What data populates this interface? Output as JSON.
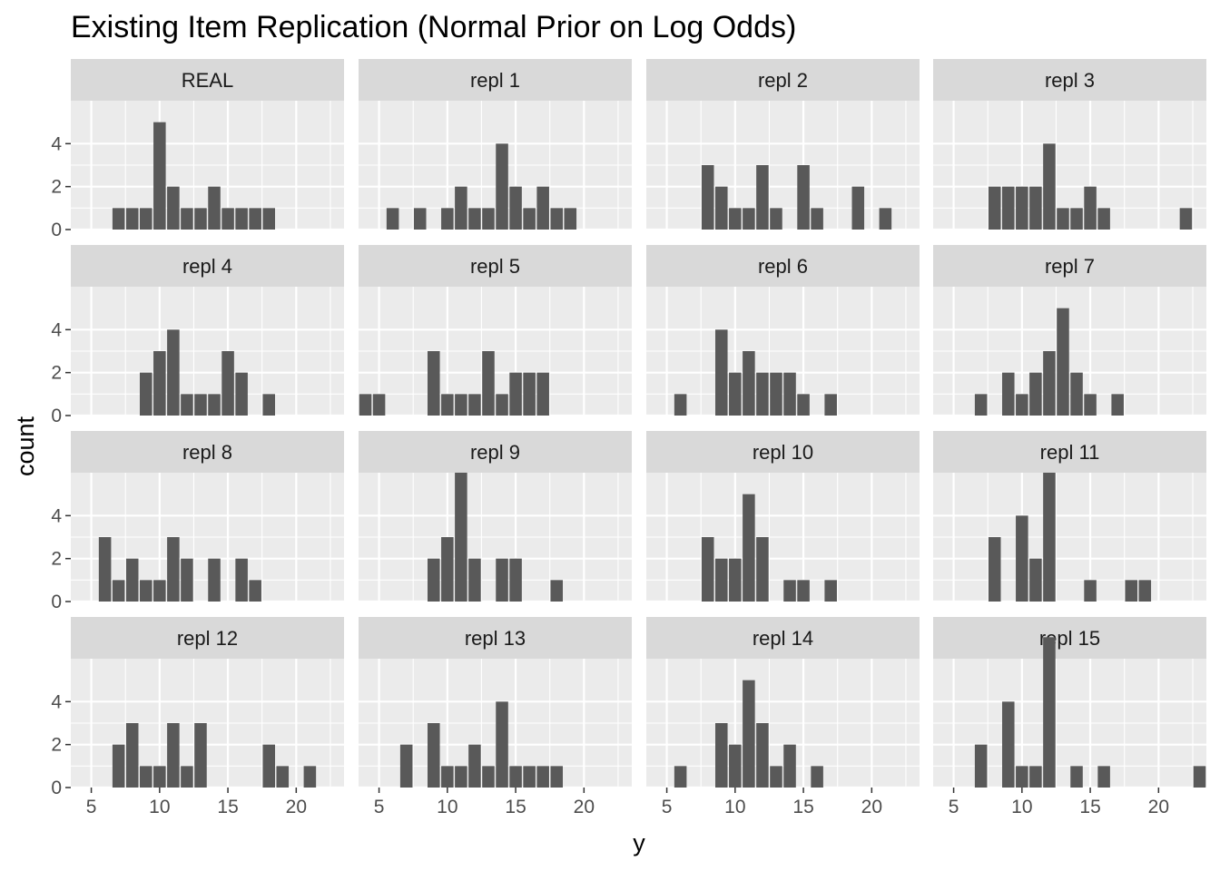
{
  "chart_data": {
    "type": "bar",
    "title": "Existing Item Replication (Normal Prior on Log Odds)",
    "xlabel": "y",
    "ylabel": "count",
    "xlim": [
      3.5,
      23.5
    ],
    "ylim": [
      0,
      6
    ],
    "x_ticks": [
      5,
      10,
      15,
      20
    ],
    "y_ticks": [
      0,
      2,
      4
    ],
    "grid": true,
    "bar_color": "#595959",
    "panel_bg": "#ebebeb",
    "strip_bg": "#d9d9d9",
    "grid_color": "#ffffff",
    "panels": [
      {
        "label": "REAL",
        "x": [
          7,
          8,
          9,
          10,
          11,
          12,
          13,
          14,
          15,
          16,
          17,
          18
        ],
        "values": [
          1,
          1,
          1,
          5,
          2,
          1,
          1,
          2,
          1,
          1,
          1,
          1
        ]
      },
      {
        "label": "repl  1",
        "x": [
          6,
          8,
          10,
          11,
          12,
          13,
          14,
          15,
          16,
          17,
          18,
          19
        ],
        "values": [
          1,
          1,
          1,
          2,
          1,
          1,
          4,
          2,
          1,
          2,
          1,
          1
        ]
      },
      {
        "label": "repl  2",
        "x": [
          8,
          9,
          10,
          11,
          12,
          13,
          15,
          16,
          19,
          21
        ],
        "values": [
          3,
          2,
          1,
          1,
          3,
          1,
          3,
          1,
          2,
          1
        ]
      },
      {
        "label": "repl  3",
        "x": [
          8,
          9,
          10,
          11,
          12,
          13,
          14,
          15,
          16,
          22
        ],
        "values": [
          2,
          2,
          2,
          2,
          4,
          1,
          1,
          2,
          1,
          1
        ]
      },
      {
        "label": "repl  4",
        "x": [
          9,
          10,
          11,
          12,
          13,
          14,
          15,
          16,
          18
        ],
        "values": [
          2,
          3,
          4,
          1,
          1,
          1,
          3,
          2,
          1
        ]
      },
      {
        "label": "repl  5",
        "x": [
          4,
          5,
          9,
          10,
          11,
          12,
          13,
          14,
          15,
          16,
          17
        ],
        "values": [
          1,
          1,
          3,
          1,
          1,
          1,
          3,
          1,
          2,
          2,
          2
        ]
      },
      {
        "label": "repl  6",
        "x": [
          6,
          9,
          10,
          11,
          12,
          13,
          14,
          15,
          17
        ],
        "values": [
          1,
          4,
          2,
          3,
          2,
          2,
          2,
          1,
          1
        ]
      },
      {
        "label": "repl  7",
        "x": [
          7,
          9,
          10,
          11,
          12,
          13,
          14,
          15,
          17
        ],
        "values": [
          1,
          2,
          1,
          2,
          3,
          5,
          2,
          1,
          1
        ]
      },
      {
        "label": "repl  8",
        "x": [
          6,
          7,
          8,
          9,
          10,
          11,
          12,
          14,
          16,
          17
        ],
        "values": [
          3,
          1,
          2,
          1,
          1,
          3,
          2,
          2,
          2,
          1
        ]
      },
      {
        "label": "repl  9",
        "x": [
          9,
          10,
          11,
          12,
          14,
          15,
          18
        ],
        "values": [
          2,
          3,
          6,
          2,
          2,
          2,
          1
        ]
      },
      {
        "label": "repl  10",
        "x": [
          8,
          9,
          10,
          11,
          12,
          14,
          15,
          17
        ],
        "values": [
          3,
          2,
          2,
          5,
          3,
          1,
          1,
          1
        ]
      },
      {
        "label": "repl  11",
        "x": [
          8,
          10,
          11,
          12,
          15,
          18,
          19
        ],
        "values": [
          3,
          4,
          2,
          6,
          1,
          1,
          1
        ]
      },
      {
        "label": "repl  12",
        "x": [
          7,
          8,
          9,
          10,
          11,
          12,
          13,
          18,
          19,
          21
        ],
        "values": [
          2,
          3,
          1,
          1,
          3,
          1,
          3,
          2,
          1,
          1
        ]
      },
      {
        "label": "repl  13",
        "x": [
          7,
          9,
          10,
          11,
          12,
          13,
          14,
          15,
          16,
          17,
          18
        ],
        "values": [
          2,
          3,
          1,
          1,
          2,
          1,
          4,
          1,
          1,
          1,
          1
        ]
      },
      {
        "label": "repl  14",
        "x": [
          6,
          9,
          10,
          11,
          12,
          13,
          14,
          16
        ],
        "values": [
          1,
          3,
          2,
          5,
          3,
          1,
          2,
          1
        ]
      },
      {
        "label": "repl  15",
        "x": [
          7,
          9,
          10,
          11,
          12,
          14,
          16,
          23
        ],
        "values": [
          2,
          4,
          1,
          1,
          7,
          1,
          1,
          1
        ]
      }
    ]
  }
}
